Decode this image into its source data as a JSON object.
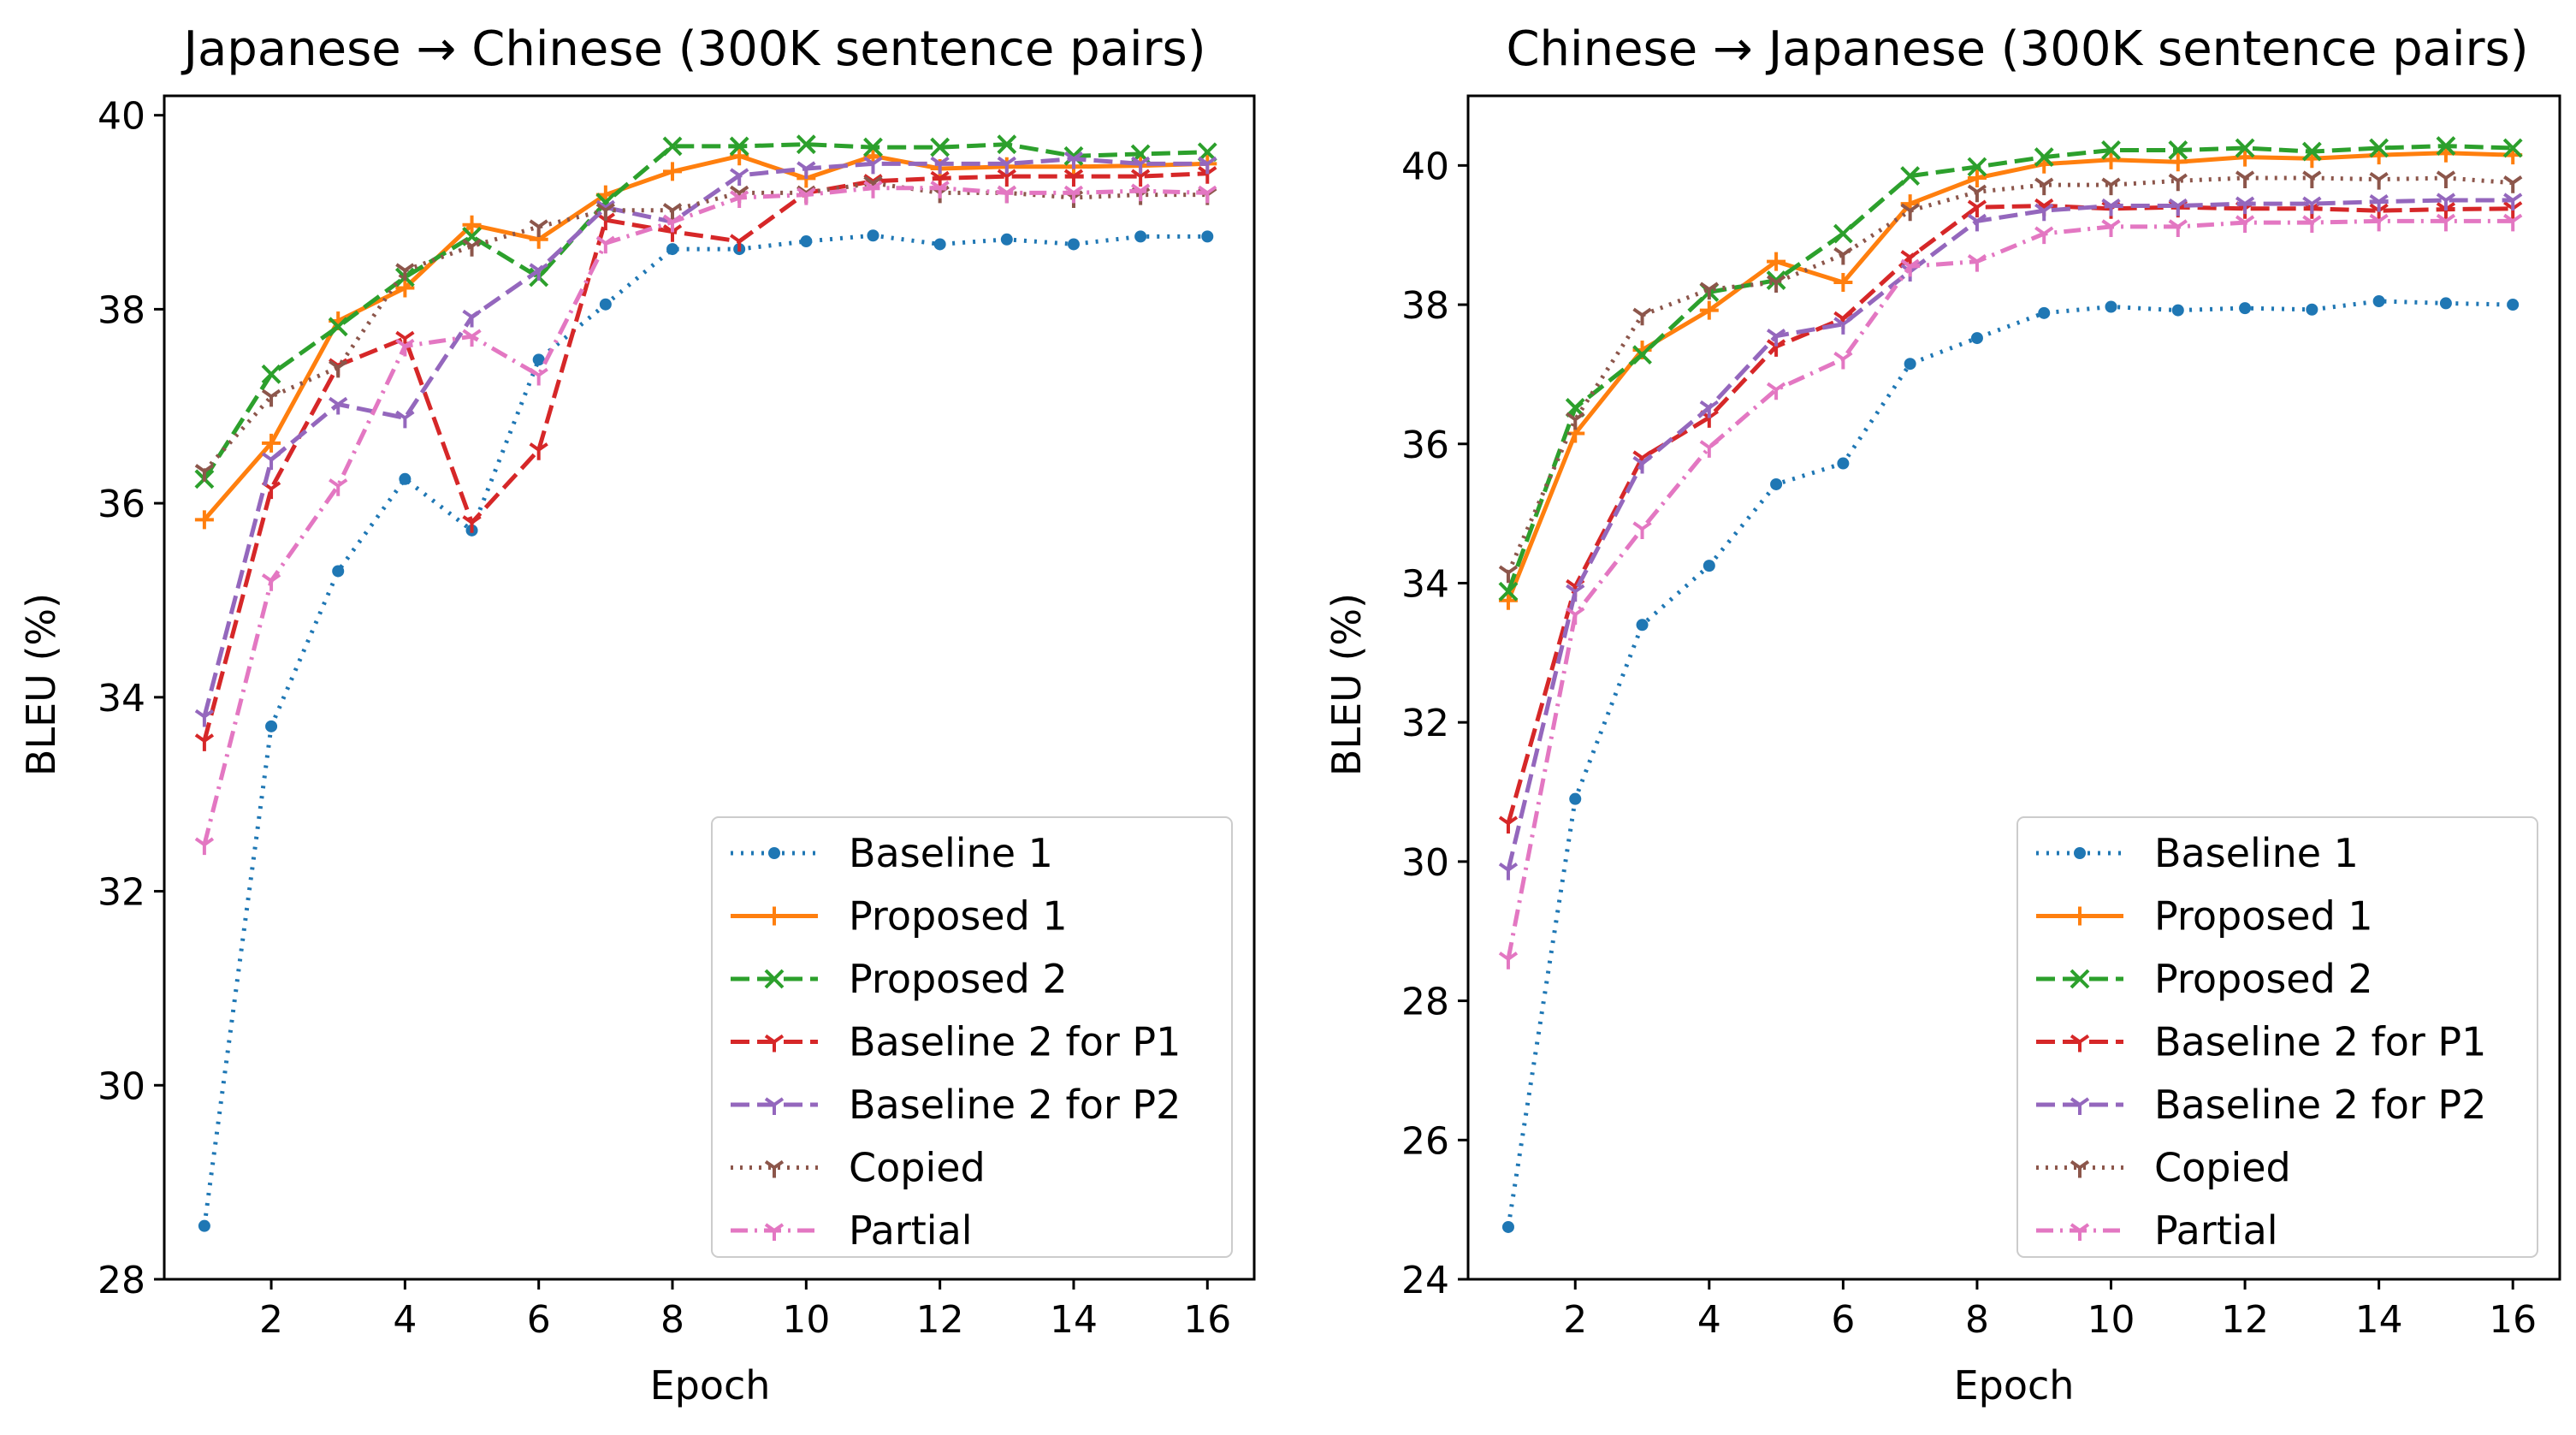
{
  "chart_data": [
    {
      "type": "line",
      "title": "Japanese → Chinese (300K sentence pairs)",
      "xlabel": "Epoch",
      "ylabel": "BLEU (%)",
      "xlim": [
        0.4,
        16.7
      ],
      "ylim": [
        28,
        40.2
      ],
      "xticks": [
        "2",
        "4",
        "6",
        "8",
        "10",
        "12",
        "14",
        "16"
      ],
      "yticks": [
        "28",
        "30",
        "32",
        "34",
        "36",
        "38",
        "40"
      ],
      "legend_position": "lower-right",
      "x": [
        1,
        2,
        3,
        4,
        5,
        6,
        7,
        8,
        9,
        10,
        11,
        12,
        13,
        14,
        15,
        16
      ],
      "series": [
        {
          "name": "Baseline 1",
          "values": [
            28.55,
            33.7,
            35.3,
            36.25,
            35.72,
            37.48,
            38.05,
            38.62,
            38.62,
            38.7,
            38.76,
            38.67,
            38.72,
            38.67,
            38.75,
            38.75
          ]
        },
        {
          "name": "Proposed 1",
          "values": [
            35.83,
            36.62,
            37.88,
            38.22,
            38.87,
            38.72,
            39.18,
            39.42,
            39.58,
            39.35,
            39.58,
            39.45,
            39.47,
            39.47,
            39.48,
            39.5
          ]
        },
        {
          "name": "Proposed 2",
          "values": [
            36.25,
            37.33,
            37.82,
            38.33,
            38.75,
            38.33,
            39.1,
            39.68,
            39.68,
            39.7,
            39.67,
            39.67,
            39.7,
            39.58,
            39.6,
            39.62
          ]
        },
        {
          "name": "Baseline 2 for P1",
          "values": [
            33.55,
            36.15,
            37.42,
            37.7,
            35.8,
            36.55,
            38.92,
            38.8,
            38.7,
            39.2,
            39.32,
            39.35,
            39.37,
            39.37,
            39.37,
            39.4
          ]
        },
        {
          "name": "Baseline 2 for P2",
          "values": [
            33.8,
            36.45,
            37.02,
            36.88,
            37.92,
            38.4,
            39.05,
            38.9,
            39.38,
            39.45,
            39.5,
            39.5,
            39.5,
            39.55,
            39.5,
            39.5
          ]
        },
        {
          "name": "Copied",
          "values": [
            36.33,
            37.1,
            37.4,
            38.4,
            38.65,
            38.85,
            39.02,
            39.02,
            39.2,
            39.2,
            39.3,
            39.2,
            39.2,
            39.15,
            39.18,
            39.18
          ]
        },
        {
          "name": "Partial",
          "values": [
            32.48,
            35.2,
            36.18,
            37.62,
            37.72,
            37.32,
            38.68,
            38.9,
            39.15,
            39.18,
            39.25,
            39.25,
            39.2,
            39.2,
            39.22,
            39.2
          ]
        }
      ]
    },
    {
      "type": "line",
      "title": "Chinese → Japanese (300K sentence pairs)",
      "xlabel": "Epoch",
      "ylabel": "BLEU (%)",
      "xlim": [
        0.4,
        16.7
      ],
      "ylim": [
        24,
        41.0
      ],
      "xticks": [
        "2",
        "4",
        "6",
        "8",
        "10",
        "12",
        "14",
        "16"
      ],
      "yticks": [
        "24",
        "26",
        "28",
        "30",
        "32",
        "34",
        "36",
        "38",
        "40"
      ],
      "legend_position": "lower-right",
      "x": [
        1,
        2,
        3,
        4,
        5,
        6,
        7,
        8,
        9,
        10,
        11,
        12,
        13,
        14,
        15,
        16
      ],
      "series": [
        {
          "name": "Baseline 1",
          "values": [
            24.75,
            30.9,
            33.4,
            34.25,
            35.42,
            35.72,
            37.15,
            37.52,
            37.88,
            37.97,
            37.92,
            37.95,
            37.93,
            38.05,
            38.02,
            38.0
          ]
        },
        {
          "name": "Proposed 1",
          "values": [
            33.75,
            36.15,
            37.35,
            37.92,
            38.62,
            38.32,
            39.45,
            39.82,
            40.02,
            40.08,
            40.05,
            40.12,
            40.1,
            40.15,
            40.18,
            40.15
          ]
        },
        {
          "name": "Proposed 2",
          "values": [
            33.88,
            36.52,
            37.28,
            38.18,
            38.35,
            39.02,
            39.85,
            39.98,
            40.12,
            40.22,
            40.22,
            40.25,
            40.2,
            40.25,
            40.28,
            40.25
          ]
        },
        {
          "name": "Baseline 2 for P1",
          "values": [
            30.55,
            33.95,
            35.8,
            36.38,
            37.4,
            37.8,
            38.68,
            39.4,
            39.42,
            39.38,
            39.4,
            39.38,
            39.38,
            39.35,
            39.37,
            39.38
          ]
        },
        {
          "name": "Baseline 2 for P2",
          "values": [
            29.88,
            33.88,
            35.72,
            36.52,
            37.55,
            37.72,
            38.48,
            39.2,
            39.35,
            39.42,
            39.42,
            39.45,
            39.45,
            39.48,
            39.5,
            39.5
          ]
        },
        {
          "name": "Copied",
          "values": [
            34.15,
            36.35,
            37.85,
            38.22,
            38.32,
            38.72,
            39.35,
            39.62,
            39.72,
            39.72,
            39.78,
            39.82,
            39.82,
            39.8,
            39.82,
            39.75
          ]
        },
        {
          "name": "Partial",
          "values": [
            28.6,
            33.55,
            34.78,
            35.95,
            36.78,
            37.22,
            38.55,
            38.62,
            39.02,
            39.12,
            39.12,
            39.18,
            39.18,
            39.2,
            39.2,
            39.2
          ]
        }
      ]
    }
  ],
  "colors": {
    "Baseline 1": "#1f77b4",
    "Proposed 1": "#ff7f0e",
    "Proposed 2": "#2ca02c",
    "Baseline 2 for P1": "#d62728",
    "Baseline 2 for P2": "#9467bd",
    "Copied": "#8c564b",
    "Partial": "#e377c2"
  }
}
